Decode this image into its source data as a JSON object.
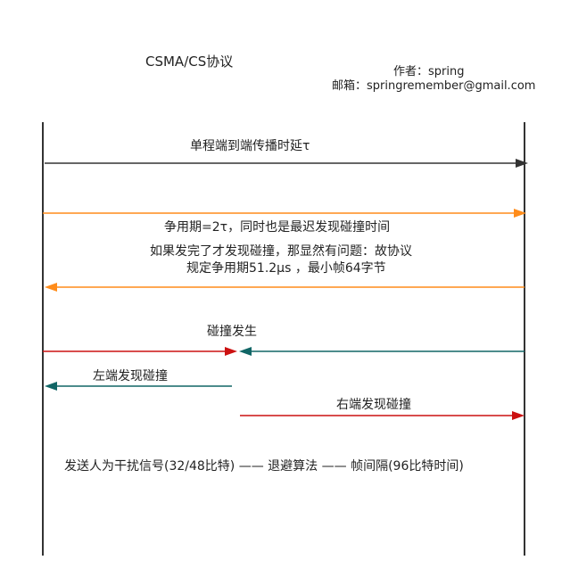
{
  "header": {
    "title": "CSMA/CS协议",
    "author": "作者：spring",
    "email": "邮箱：springremember@gmail.com"
  },
  "labels": {
    "one_way": "单程端到端传播时延τ",
    "contention": "争用期=2τ，同时也是最迟发现碰撞时间",
    "explain_line1": "如果发完了才发现碰撞，那显然有问题：故协议",
    "explain_line2": "规定争用期51.2μs ，最小帧64字节",
    "collision": "碰撞发生",
    "left_detect": "左端发现碰撞",
    "right_detect": "右端发现碰撞",
    "footer": "发送人为干扰信号(32/48比特)  ——  退避算法  ——  帧间隔(96比特时间)"
  },
  "colors": {
    "black": "#333333",
    "orange": "#ff8c1a",
    "red": "#cc1111",
    "teal": "#116666"
  }
}
